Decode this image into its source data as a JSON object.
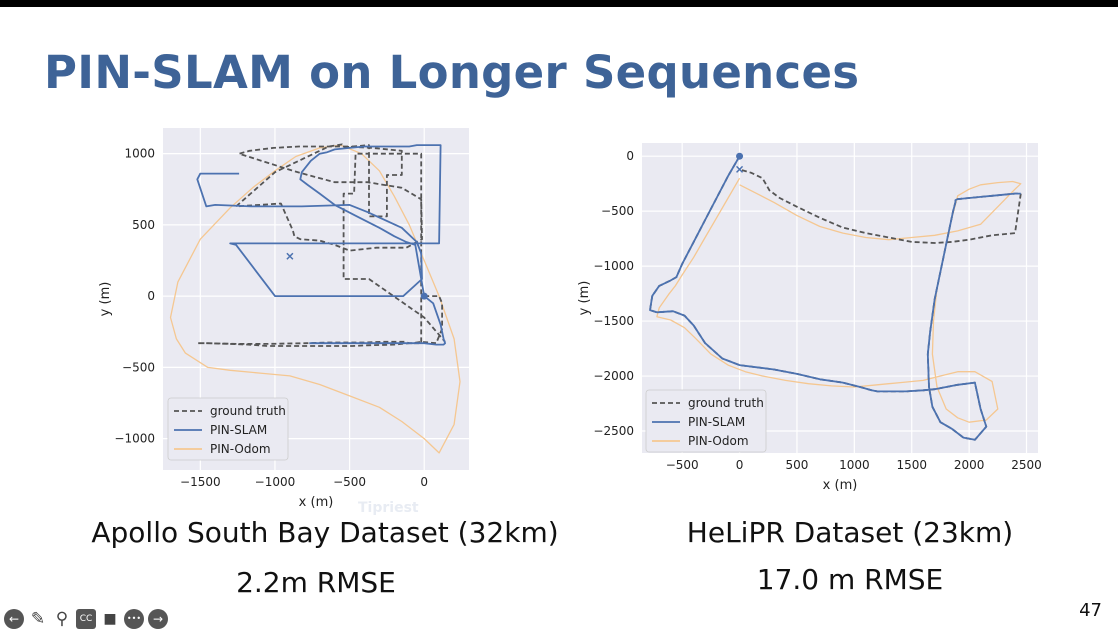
{
  "slide": {
    "title": "PIN-SLAM on Longer Sequences",
    "page_number": "47",
    "watermark": "Tipriest",
    "left_caption_line1": "Apollo South Bay Dataset (32km)",
    "left_caption_line2": "2.2m RMSE",
    "right_caption_line1": "HeLiPR Dataset (23km)",
    "right_caption_line2": "17.0 m RMSE"
  },
  "controls": [
    {
      "name": "back-icon",
      "glyph": "←"
    },
    {
      "name": "pen-icon",
      "glyph": "✎"
    },
    {
      "name": "zoom-icon",
      "glyph": "⚲"
    },
    {
      "name": "captions-icon",
      "glyph": "CC"
    },
    {
      "name": "camera-icon",
      "glyph": "■"
    },
    {
      "name": "more-icon",
      "glyph": "•••"
    },
    {
      "name": "forward-icon",
      "glyph": "→"
    }
  ],
  "colors": {
    "slam": "#4c72b0",
    "odom": "#f5c791",
    "gt": "#555555",
    "plot_bg": "#eaeaf2",
    "title": "#3e6397"
  },
  "chart_data": [
    {
      "type": "line",
      "xlabel": "x (m)",
      "ylabel": "y (m)",
      "xlim": [
        -1750,
        300
      ],
      "ylim": [
        -1220,
        1180
      ],
      "xticks": [
        -1500,
        -1000,
        -500,
        0
      ],
      "yticks": [
        1000,
        500,
        0,
        -500,
        -1000
      ],
      "grid": true,
      "legend": "lower-left",
      "start_marker": [
        0,
        0
      ],
      "end_marker": [
        -900,
        280
      ],
      "series": [
        {
          "name": "ground truth",
          "style": "dashed",
          "x": [
            0,
            100,
            120,
            120,
            80,
            -20,
            -80,
            -100,
            -130,
            -280,
            -400,
            -500,
            -640,
            -790,
            -1060,
            -1250,
            -1450,
            -1520,
            -1520,
            -1460,
            -1310,
            -1180,
            -1050,
            -700,
            -480,
            -380,
            -200,
            -100,
            -20,
            -20,
            -370,
            -370,
            -250,
            -250,
            -150,
            -150,
            -350,
            -520,
            -840,
            -1010,
            -1170,
            -1240,
            -880,
            -780,
            -600,
            -380,
            -150,
            -20,
            -15,
            -120,
            -320,
            -500,
            -600,
            -700,
            -830,
            -870,
            -880,
            -960,
            -1260,
            -1000,
            -640,
            -550,
            -530,
            -370,
            -370,
            -460,
            -470,
            -540,
            -540,
            -370,
            0,
            140
          ],
          "y": [
            0,
            0,
            -50,
            -230,
            -330,
            -320,
            -330,
            -330,
            -320,
            -320,
            -325,
            -325,
            -325,
            -330,
            -335,
            -335,
            -330,
            -330,
            -330,
            -330,
            -335,
            -340,
            -350,
            -350,
            -350,
            -345,
            -340,
            -330,
            -330,
            1000,
            1000,
            560,
            560,
            850,
            850,
            1020,
            1040,
            1050,
            1050,
            1040,
            1020,
            1000,
            880,
            850,
            800,
            800,
            760,
            680,
            400,
            340,
            340,
            320,
            360,
            390,
            400,
            420,
            460,
            650,
            630,
            870,
            1050,
            1065,
            1045,
            1060,
            1000,
            1000,
            720,
            720,
            120,
            120,
            -150,
            -320
          ]
        },
        {
          "name": "PIN-SLAM",
          "style": "solid",
          "x": [
            -1240,
            -1500,
            -1520,
            -1460,
            -1400,
            -1160,
            -960,
            -820,
            -500,
            -380,
            -150,
            -50,
            -20,
            -15,
            -140,
            -300,
            -470,
            -700,
            -880,
            -1000,
            -1260,
            -1300,
            -1000,
            -700,
            -500,
            -300,
            -120,
            0,
            100,
            110,
            50,
            -20,
            -50,
            -100,
            -200,
            -300,
            -400,
            -500,
            -600,
            -650,
            -700,
            -760,
            -820,
            -830,
            -780,
            -700,
            -600,
            -450,
            -300,
            -200,
            -120,
            -60,
            0,
            60,
            110,
            130,
            140,
            130,
            110,
            90,
            80,
            0,
            -30,
            -50,
            -80,
            -100,
            -130,
            -170,
            -200,
            -250,
            -380,
            -580,
            -700,
            -760,
            -770
          ],
          "y": [
            860,
            860,
            820,
            630,
            640,
            630,
            630,
            630,
            640,
            590,
            480,
            380,
            300,
            120,
            0,
            0,
            0,
            0,
            0,
            0,
            360,
            370,
            370,
            370,
            370,
            370,
            370,
            370,
            370,
            1060,
            1060,
            1060,
            1060,
            1050,
            1050,
            1050,
            1050,
            1040,
            1030,
            1010,
            1000,
            950,
            870,
            820,
            780,
            720,
            640,
            560,
            480,
            420,
            380,
            360,
            0,
            -50,
            -200,
            -300,
            -330,
            -340,
            -340,
            -340,
            -340,
            -330,
            -330,
            -330,
            -330,
            -330,
            -330,
            -330,
            -330,
            -330,
            -330,
            -330,
            -330,
            -330,
            -330
          ]
        },
        {
          "name": "PIN-Odom",
          "style": "solid",
          "x": [
            -1300,
            -1500,
            -1650,
            -1700,
            -1660,
            -1600,
            -1450,
            -1300,
            -1100,
            -900,
            -700,
            -500,
            -300,
            -150,
            0,
            100,
            200,
            240,
            200,
            100,
            0,
            -100,
            -200,
            -300,
            -420,
            -560,
            -700,
            -860,
            -1000,
            -1150,
            -1300
          ],
          "y": [
            620,
            400,
            100,
            -150,
            -300,
            -400,
            -500,
            -520,
            -540,
            -560,
            -620,
            -700,
            -780,
            -880,
            -1000,
            -1100,
            -900,
            -600,
            -300,
            0,
            250,
            500,
            700,
            880,
            1000,
            1060,
            1040,
            980,
            880,
            760,
            620
          ]
        }
      ]
    },
    {
      "type": "line",
      "xlabel": "x (m)",
      "ylabel": "y (m)",
      "xlim": [
        -850,
        2600
      ],
      "ylim": [
        -2700,
        120
      ],
      "xticks": [
        -500,
        0,
        500,
        1000,
        1500,
        2000,
        2500
      ],
      "yticks": [
        0,
        -500,
        -1000,
        -1500,
        -2000,
        -2500
      ],
      "grid": true,
      "legend": "lower-left",
      "start_marker": [
        0,
        0
      ],
      "end_marker": [
        0,
        -120
      ],
      "series": [
        {
          "name": "ground truth",
          "style": "dashed",
          "x": [
            0,
            -100,
            -200,
            -300,
            -400,
            -500,
            -550,
            -600,
            -700,
            -760,
            -780,
            -720,
            -580,
            -480,
            -400,
            -300,
            -150,
            0,
            150,
            300,
            500,
            700,
            900,
            1050,
            1150,
            1200,
            1300,
            1450,
            1600,
            1700,
            1900,
            2050,
            2100,
            2150,
            2050,
            1950,
            1850,
            1750,
            1680,
            1650,
            1640,
            1660,
            1700,
            1760,
            1820,
            1860,
            1880,
            1880,
            1900,
            2000,
            2100,
            2200,
            2300,
            2350,
            2400,
            2450,
            2400,
            2200,
            2000,
            1850,
            1700,
            1500,
            1300,
            1100,
            900,
            700,
            500,
            350,
            260,
            200,
            100,
            0
          ],
          "y": [
            0,
            -180,
            -380,
            -580,
            -780,
            -980,
            -1100,
            -1130,
            -1180,
            -1270,
            -1400,
            -1420,
            -1410,
            -1450,
            -1540,
            -1700,
            -1840,
            -1900,
            -1920,
            -1940,
            -1980,
            -2030,
            -2060,
            -2100,
            -2130,
            -2140,
            -2140,
            -2140,
            -2130,
            -2120,
            -2080,
            -2060,
            -2300,
            -2460,
            -2580,
            -2560,
            -2480,
            -2420,
            -2280,
            -2100,
            -1800,
            -1600,
            -1300,
            -1000,
            -700,
            -500,
            -420,
            -400,
            -390,
            -380,
            -370,
            -360,
            -350,
            -345,
            -340,
            -340,
            -700,
            -720,
            -760,
            -780,
            -790,
            -780,
            -740,
            -700,
            -650,
            -560,
            -460,
            -380,
            -310,
            -200,
            -150,
            -120
          ]
        },
        {
          "name": "PIN-SLAM",
          "style": "solid",
          "x": [
            0,
            -100,
            -200,
            -300,
            -400,
            -500,
            -550,
            -600,
            -700,
            -760,
            -780,
            -720,
            -580,
            -480,
            -400,
            -300,
            -150,
            0,
            150,
            300,
            500,
            700,
            900,
            1050,
            1150,
            1200,
            1300,
            1450,
            1600,
            1700,
            1900,
            2050,
            2100,
            2150,
            2050,
            1950,
            1850,
            1750,
            1680,
            1650,
            1640,
            1660,
            1700,
            1760,
            1820,
            1860,
            1880,
            1880,
            1900,
            2000,
            2100,
            2200,
            2300,
            2350,
            2400,
            2450
          ],
          "y": [
            0,
            -180,
            -380,
            -580,
            -780,
            -980,
            -1100,
            -1130,
            -1180,
            -1270,
            -1400,
            -1420,
            -1410,
            -1450,
            -1540,
            -1700,
            -1840,
            -1900,
            -1920,
            -1940,
            -1980,
            -2030,
            -2060,
            -2100,
            -2130,
            -2140,
            -2140,
            -2140,
            -2130,
            -2120,
            -2080,
            -2060,
            -2300,
            -2460,
            -2580,
            -2560,
            -2480,
            -2420,
            -2280,
            -2100,
            -1800,
            -1600,
            -1300,
            -1000,
            -700,
            -500,
            -420,
            -400,
            -390,
            -380,
            -370,
            -360,
            -350,
            -345,
            -340,
            -340
          ]
        },
        {
          "name": "PIN-Odom",
          "style": "solid",
          "x": [
            0,
            -100,
            -200,
            -300,
            -400,
            -500,
            -560,
            -620,
            -700,
            -720,
            -600,
            -480,
            -380,
            -250,
            -100,
            50,
            200,
            400,
            600,
            800,
            1000,
            1200,
            1400,
            1600,
            1750,
            1900,
            2050,
            2200,
            2250,
            2150,
            2000,
            1900,
            1800,
            1720,
            1680,
            1690,
            1720,
            1780,
            1840,
            1900,
            2000,
            2100,
            2250,
            2380,
            2450,
            2400,
            2100,
            1900,
            1700,
            1500,
            1300,
            1100,
            900,
            700,
            500,
            300,
            150,
            0
          ],
          "y": [
            -200,
            -380,
            -560,
            -740,
            -920,
            -1080,
            -1180,
            -1260,
            -1380,
            -1460,
            -1490,
            -1560,
            -1660,
            -1800,
            -1900,
            -1960,
            -2000,
            -2040,
            -2070,
            -2090,
            -2100,
            -2080,
            -2060,
            -2040,
            -2000,
            -1960,
            -1960,
            -2050,
            -2300,
            -2400,
            -2420,
            -2380,
            -2300,
            -2100,
            -1800,
            -1500,
            -1200,
            -900,
            -600,
            -360,
            -300,
            -260,
            -240,
            -230,
            -250,
            -300,
            -620,
            -680,
            -720,
            -740,
            -760,
            -740,
            -700,
            -640,
            -540,
            -420,
            -340,
            -260
          ]
        }
      ]
    }
  ]
}
